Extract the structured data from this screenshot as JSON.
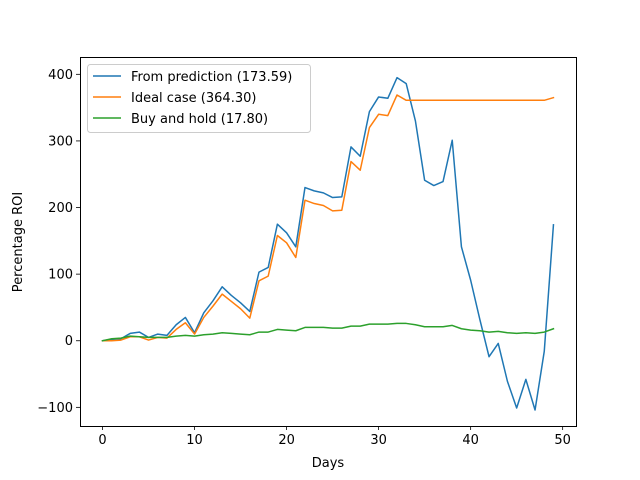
{
  "chart_data": {
    "type": "line",
    "title": "",
    "xlabel": "Days",
    "ylabel": "Percentage ROI",
    "xlim": [
      -2.45,
      51.45
    ],
    "ylim": [
      -128,
      426
    ],
    "xticks": [
      0,
      10,
      20,
      30,
      40,
      50
    ],
    "yticks": [
      -100,
      0,
      100,
      200,
      300,
      400
    ],
    "ytick_labels": [
      "−100",
      "0",
      "100",
      "200",
      "300",
      "400"
    ],
    "grid": false,
    "legend_position": "top-left",
    "x": [
      0,
      1,
      2,
      3,
      4,
      5,
      6,
      7,
      8,
      9,
      10,
      11,
      12,
      13,
      14,
      15,
      16,
      17,
      18,
      19,
      20,
      21,
      22,
      23,
      24,
      25,
      26,
      27,
      28,
      29,
      30,
      31,
      32,
      33,
      34,
      35,
      36,
      37,
      38,
      39,
      40,
      41,
      42,
      43,
      44,
      45,
      46,
      47,
      48,
      49
    ],
    "series": [
      {
        "name": "From prediction (173.59)",
        "color": "#1f77b4",
        "values": [
          0,
          2,
          3,
          11,
          13,
          5,
          10,
          8,
          24,
          35,
          12,
          42,
          60,
          81,
          68,
          57,
          44,
          103,
          110,
          175,
          162,
          141,
          230,
          225,
          222,
          215,
          216,
          291,
          277,
          344,
          366,
          364,
          395,
          386,
          330,
          241,
          233,
          239,
          301,
          141,
          91,
          32,
          -24,
          -4,
          -61,
          -101,
          -58,
          -104,
          -16,
          174
        ]
      },
      {
        "name": "Ideal case (364.30)",
        "color": "#ff7f0e",
        "values": [
          0,
          0,
          1,
          6,
          6,
          1,
          5,
          4,
          17,
          27,
          10,
          35,
          52,
          70,
          59,
          48,
          34,
          90,
          97,
          158,
          147,
          125,
          211,
          206,
          203,
          195,
          196,
          269,
          256,
          320,
          340,
          338,
          369,
          361,
          361,
          361,
          361,
          361,
          361,
          361,
          361,
          361,
          361,
          361,
          361,
          361,
          361,
          361,
          361,
          365
        ]
      },
      {
        "name": "Buy and hold (17.80)",
        "color": "#2ca02c",
        "values": [
          0,
          3,
          4,
          7,
          6,
          5,
          5,
          5,
          7,
          8,
          7,
          9,
          10,
          12,
          11,
          10,
          9,
          13,
          13,
          17,
          16,
          15,
          20,
          20,
          20,
          19,
          19,
          22,
          22,
          25,
          25,
          25,
          26,
          26,
          24,
          21,
          21,
          21,
          23,
          18,
          16,
          15,
          13,
          14,
          12,
          11,
          12,
          11,
          13,
          18
        ]
      }
    ]
  }
}
